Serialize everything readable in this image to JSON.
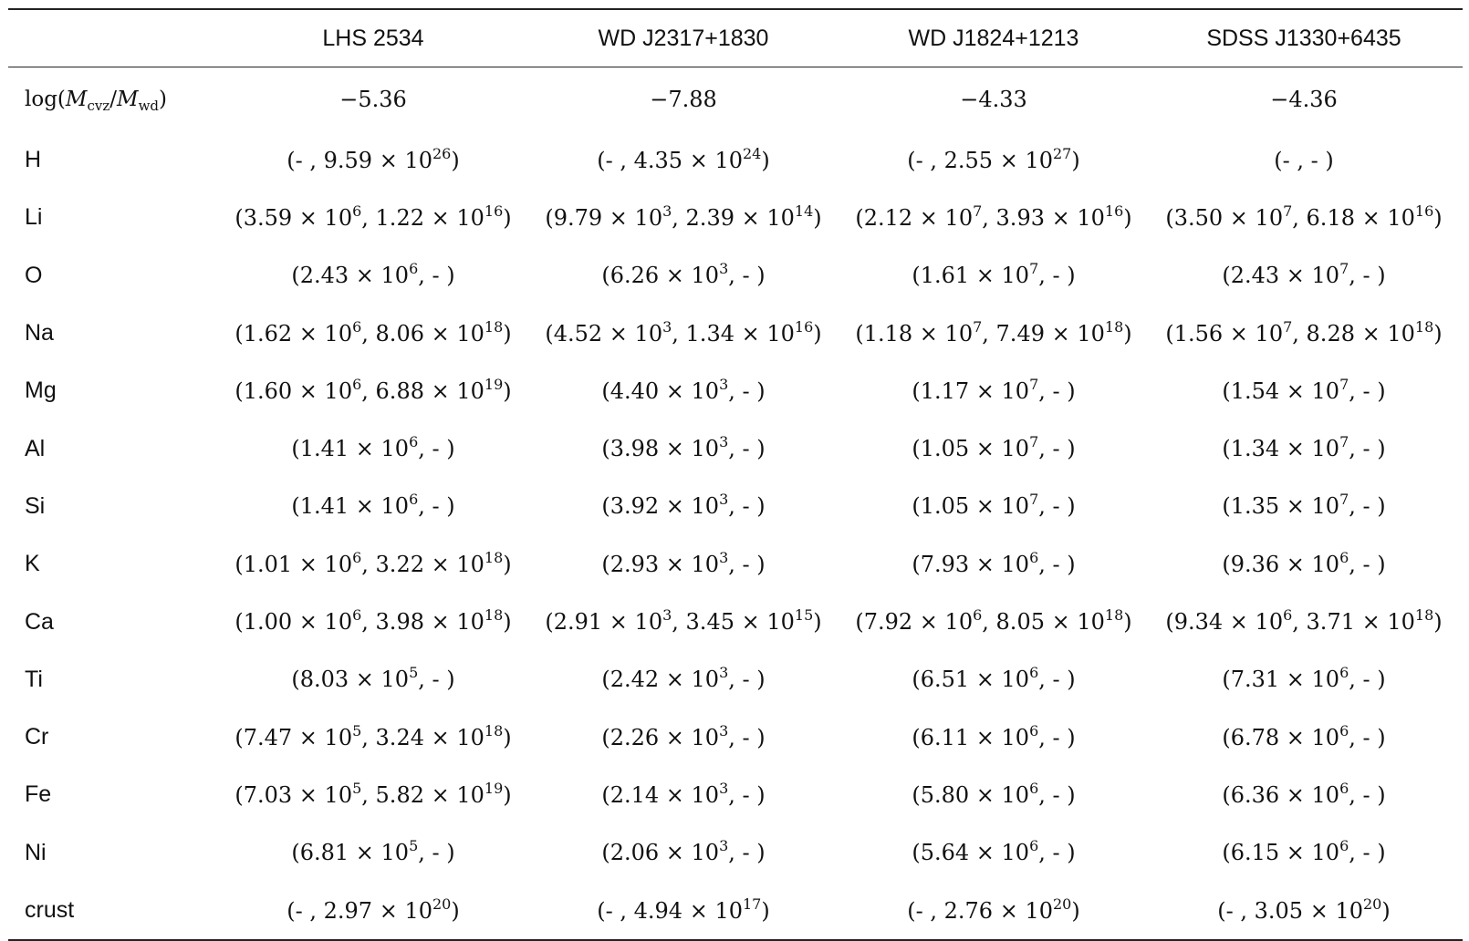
{
  "table": {
    "columns": [
      "LHS 2534",
      "WD J2317+1830",
      "WD J1824+1213",
      "SDSS J1330+6435"
    ],
    "first_row": {
      "label_parts": [
        "log(",
        "M",
        "cvz",
        "/",
        "M",
        "wd",
        ")"
      ],
      "values": [
        "−5.36",
        "−7.88",
        "−4.33",
        "−4.36"
      ]
    },
    "rows": [
      {
        "label": "H",
        "cells": [
          [
            "(- , 9.59 × 10",
            "26",
            ")"
          ],
          [
            "(- , 4.35 × 10",
            "24",
            ")"
          ],
          [
            "(- , 2.55 × 10",
            "27",
            ")"
          ],
          [
            "(- , - )"
          ]
        ]
      },
      {
        "label": "Li",
        "cells": [
          [
            "(3.59 × 10",
            "6",
            ", 1.22 × 10",
            "16",
            ")"
          ],
          [
            "(9.79 × 10",
            "3",
            ", 2.39 × 10",
            "14",
            ")"
          ],
          [
            "(2.12 × 10",
            "7",
            ", 3.93 × 10",
            "16",
            ")"
          ],
          [
            "(3.50 × 10",
            "7",
            ", 6.18 × 10",
            "16",
            ")"
          ]
        ]
      },
      {
        "label": "O",
        "cells": [
          [
            "(2.43 × 10",
            "6",
            ", - )"
          ],
          [
            "(6.26 × 10",
            "3",
            ", - )"
          ],
          [
            "(1.61 × 10",
            "7",
            ", - )"
          ],
          [
            "(2.43 × 10",
            "7",
            ", - )"
          ]
        ]
      },
      {
        "label": "Na",
        "cells": [
          [
            "(1.62 × 10",
            "6",
            ", 8.06 × 10",
            "18",
            ")"
          ],
          [
            "(4.52 × 10",
            "3",
            ", 1.34 × 10",
            "16",
            ")"
          ],
          [
            "(1.18 × 10",
            "7",
            ", 7.49 × 10",
            "18",
            ")"
          ],
          [
            "(1.56 × 10",
            "7",
            ", 8.28 × 10",
            "18",
            ")"
          ]
        ]
      },
      {
        "label": "Mg",
        "cells": [
          [
            "(1.60 × 10",
            "6",
            ", 6.88 × 10",
            "19",
            ")"
          ],
          [
            "(4.40 × 10",
            "3",
            ", - )"
          ],
          [
            "(1.17 × 10",
            "7",
            ", - )"
          ],
          [
            "(1.54 × 10",
            "7",
            ", - )"
          ]
        ]
      },
      {
        "label": "Al",
        "cells": [
          [
            "(1.41 × 10",
            "6",
            ", - )"
          ],
          [
            "(3.98 × 10",
            "3",
            ", - )"
          ],
          [
            "(1.05 × 10",
            "7",
            ", - )"
          ],
          [
            "(1.34 × 10",
            "7",
            ", - )"
          ]
        ]
      },
      {
        "label": "Si",
        "cells": [
          [
            "(1.41 × 10",
            "6",
            ", - )"
          ],
          [
            "(3.92 × 10",
            "3",
            ", - )"
          ],
          [
            "(1.05 × 10",
            "7",
            ", - )"
          ],
          [
            "(1.35 × 10",
            "7",
            ", - )"
          ]
        ]
      },
      {
        "label": "K",
        "cells": [
          [
            "(1.01 × 10",
            "6",
            ", 3.22 × 10",
            "18",
            ")"
          ],
          [
            "(2.93 × 10",
            "3",
            ", - )"
          ],
          [
            "(7.93 × 10",
            "6",
            ", - )"
          ],
          [
            "(9.36 × 10",
            "6",
            ", - )"
          ]
        ]
      },
      {
        "label": "Ca",
        "cells": [
          [
            "(1.00 × 10",
            "6",
            ", 3.98 × 10",
            "18",
            ")"
          ],
          [
            "(2.91 × 10",
            "3",
            ", 3.45 × 10",
            "15",
            ")"
          ],
          [
            "(7.92 × 10",
            "6",
            ", 8.05 × 10",
            "18",
            ")"
          ],
          [
            "(9.34 × 10",
            "6",
            ", 3.71 × 10",
            "18",
            ")"
          ]
        ]
      },
      {
        "label": "Ti",
        "cells": [
          [
            "(8.03 × 10",
            "5",
            ", - )"
          ],
          [
            "(2.42 × 10",
            "3",
            ", - )"
          ],
          [
            "(6.51 × 10",
            "6",
            ", - )"
          ],
          [
            "(7.31 × 10",
            "6",
            ", - )"
          ]
        ]
      },
      {
        "label": "Cr",
        "cells": [
          [
            "(7.47 × 10",
            "5",
            ", 3.24 × 10",
            "18",
            ")"
          ],
          [
            "(2.26 × 10",
            "3",
            ", - )"
          ],
          [
            "(6.11 × 10",
            "6",
            ", - )"
          ],
          [
            "(6.78 × 10",
            "6",
            ", - )"
          ]
        ]
      },
      {
        "label": "Fe",
        "cells": [
          [
            "(7.03 × 10",
            "5",
            ", 5.82 × 10",
            "19",
            ")"
          ],
          [
            "(2.14 × 10",
            "3",
            ", - )"
          ],
          [
            "(5.80 × 10",
            "6",
            ", - )"
          ],
          [
            "(6.36 × 10",
            "6",
            ", - )"
          ]
        ]
      },
      {
        "label": "Ni",
        "cells": [
          [
            "(6.81 × 10",
            "5",
            ", - )"
          ],
          [
            "(2.06 × 10",
            "3",
            ", - )"
          ],
          [
            "(5.64 × 10",
            "6",
            ", - )"
          ],
          [
            "(6.15 × 10",
            "6",
            ", - )"
          ]
        ]
      },
      {
        "label": "crust",
        "cells": [
          [
            "(- , 2.97 × 10",
            "20",
            ")"
          ],
          [
            "(- , 4.94 × 10",
            "17",
            ")"
          ],
          [
            "(- , 2.76 × 10",
            "20",
            ")"
          ],
          [
            "(- , 3.05 × 10",
            "20",
            ")"
          ]
        ]
      }
    ]
  }
}
